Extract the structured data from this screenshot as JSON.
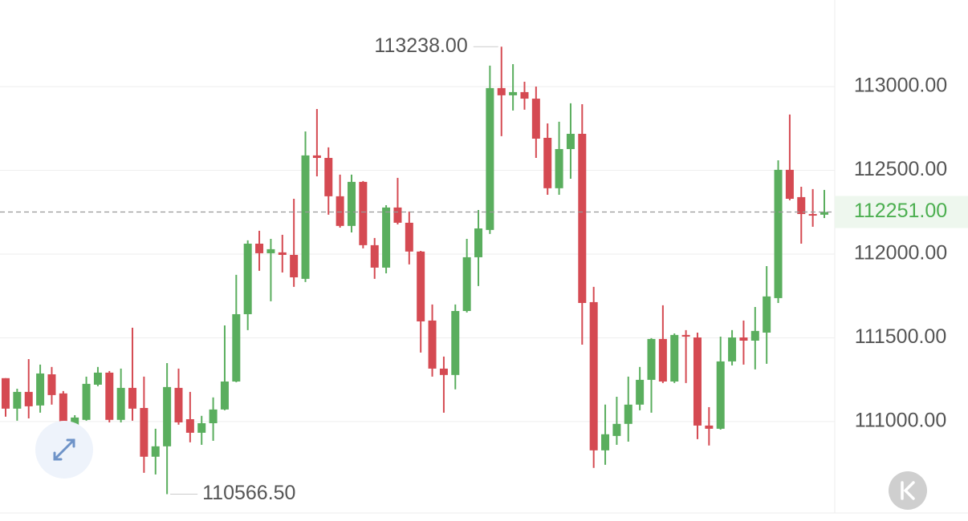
{
  "chart_data": {
    "type": "candlestick",
    "up_color": "#5aae5e",
    "down_color": "#d54a52",
    "ylim": [
      110454,
      113517
    ],
    "yticks": [
      {
        "value": 111000,
        "label": "111000.00"
      },
      {
        "value": 111500,
        "label": "111500.00"
      },
      {
        "value": 112000,
        "label": "112000.00"
      },
      {
        "value": 112500,
        "label": "112500.00"
      },
      {
        "value": 113000,
        "label": "113000.00"
      }
    ],
    "grid": true,
    "last_price": {
      "value": 112251,
      "label": "112251.00",
      "color": "#4caf50"
    },
    "high_label": {
      "value": 113238,
      "label": "113238.00"
    },
    "low_label": {
      "value": 110566.5,
      "label": "110566.50"
    },
    "open": [
      111259,
      111077,
      111177,
      111096,
      111282,
      111168,
      110909,
      111010,
      111220,
      111292,
      111010,
      111201,
      111081,
      110790,
      110852,
      111201,
      111014,
      110933,
      110990,
      111072,
      111239,
      111641,
      112062,
      112005,
      112010,
      111995,
      111852,
      112589,
      112574,
      112345,
      112168,
      112431,
      112053,
      111919,
      112278,
      112187,
      112015,
      111603,
      111316,
      111278,
      111660,
      111981,
      112144,
      112991,
      112948,
      112967,
      112928,
      112694,
      112393,
      112627,
      112718,
      111713,
      110828,
      110914,
      110986,
      111101,
      111249,
      111493,
      111239,
      111517,
      111502,
      110976,
      110957,
      111359,
      111502,
      111483,
      111531,
      111737,
      112503,
      112340,
      112239,
      112235
    ],
    "high": [
      111259,
      111196,
      111373,
      111340,
      111326,
      111182,
      111038,
      111268,
      111326,
      111302,
      111316,
      111560,
      111268,
      110957,
      111349,
      111316,
      111177,
      111034,
      111144,
      111574,
      111876,
      112082,
      112139,
      112091,
      112115,
      112330,
      112732,
      112866,
      112637,
      112474,
      112474,
      112436,
      112096,
      112292,
      112455,
      112254,
      112019,
      111699,
      111388,
      111699,
      112091,
      112263,
      113125,
      113238,
      113134,
      113029,
      113000,
      112780,
      112790,
      112900,
      112895,
      111804,
      111101,
      111148,
      111268,
      111326,
      111498,
      111694,
      111526,
      111546,
      111531,
      111086,
      111507,
      111546,
      111603,
      111684,
      111928,
      112560,
      112833,
      112402,
      112388,
      112383
    ],
    "low": [
      111029,
      111005,
      111019,
      111053,
      111101,
      110857,
      110828,
      111005,
      111211,
      110995,
      110995,
      111005,
      110694,
      110684,
      110566.5,
      110981,
      110876,
      110861,
      110885,
      111067,
      111235,
      111546,
      111900,
      111718,
      111890,
      111804,
      111833,
      112464,
      112235,
      112158,
      112129,
      112034,
      111852,
      111885,
      112177,
      111938,
      111412,
      111268,
      111053,
      111192,
      111651,
      111809,
      112120,
      112704,
      112857,
      112862,
      112574,
      112354,
      112354,
      112450,
      111459,
      110723,
      110742,
      110861,
      110880,
      111067,
      111053,
      111230,
      111230,
      111230,
      110895,
      110857,
      110952,
      111335,
      111340,
      111311,
      111345,
      111708,
      112321,
      112062,
      112163,
      112215
    ],
    "close": [
      111077,
      111177,
      111091,
      111287,
      111158,
      110928,
      111024,
      111225,
      111292,
      111010,
      111201,
      111077,
      110790,
      110852,
      111206,
      110995,
      110933,
      110990,
      111072,
      111239,
      111641,
      112062,
      112005,
      112029,
      111995,
      111861,
      112589,
      112574,
      112345,
      112168,
      112431,
      112053,
      111919,
      112278,
      112187,
      112015,
      111598,
      111316,
      111278,
      111660,
      111981,
      112153,
      112991,
      112948,
      112967,
      112928,
      112689,
      112393,
      112627,
      112718,
      111708,
      110828,
      110924,
      110986,
      111101,
      111249,
      111493,
      111239,
      111517,
      111507,
      110976,
      110957,
      111359,
      111502,
      111483,
      111541,
      111747,
      112503,
      112330,
      112239,
      112235,
      112251
    ]
  }
}
